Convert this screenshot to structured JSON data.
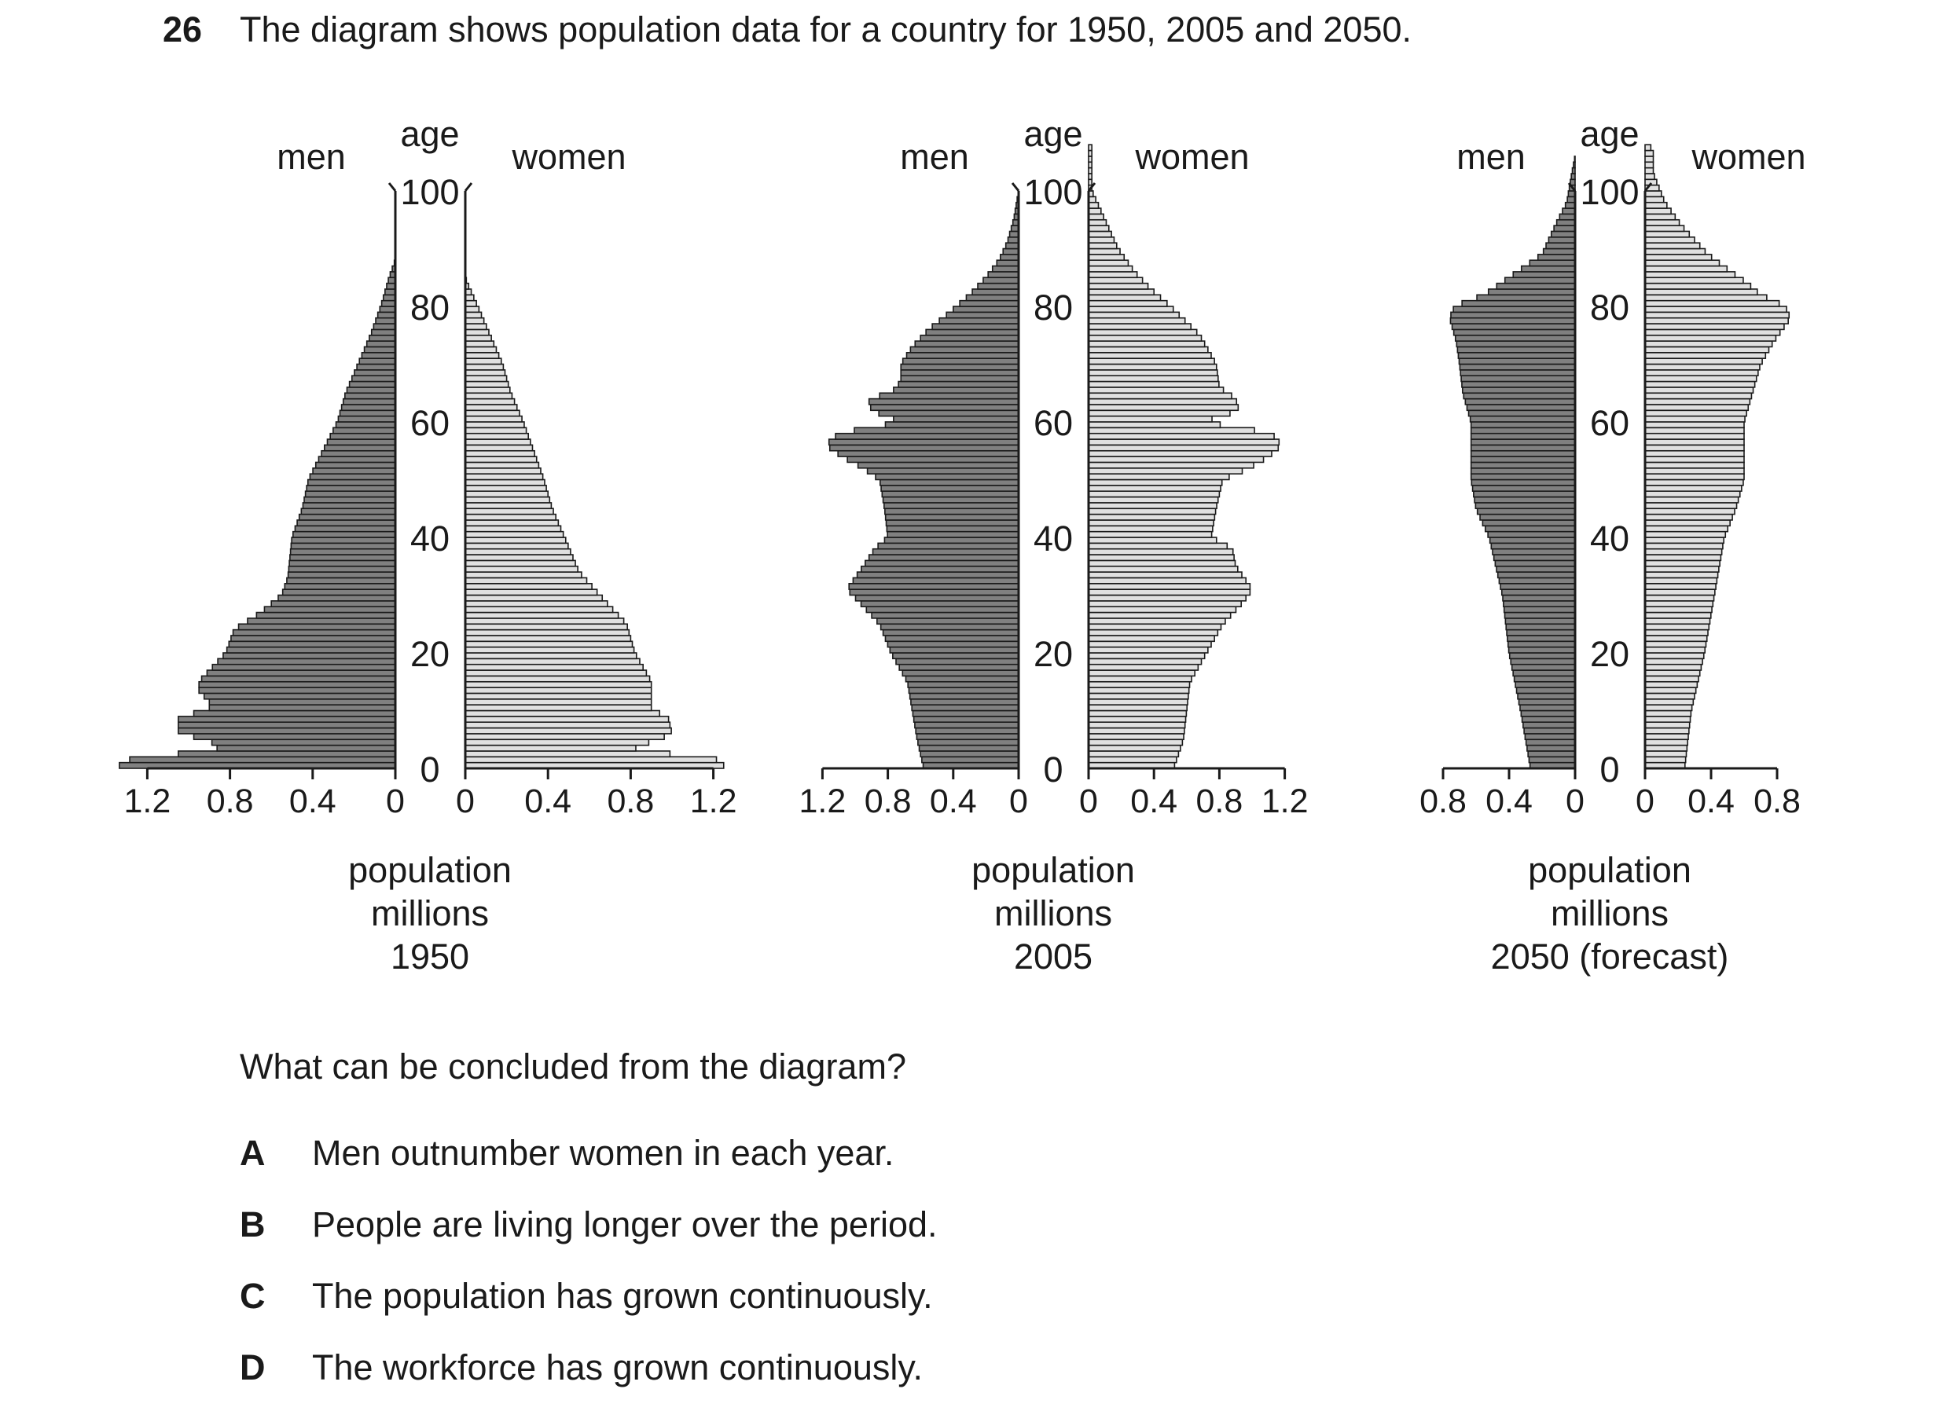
{
  "question_number": "26",
  "question_text": "The diagram shows population data for a country for 1950, 2005 and 2050.",
  "prompt": "What can be concluded from the diagram?",
  "options": [
    {
      "letter": "A",
      "text": "Men outnumber women in each year."
    },
    {
      "letter": "B",
      "text": "People are living longer over the period."
    },
    {
      "letter": "C",
      "text": "The population has grown continuously."
    },
    {
      "letter": "D",
      "text": "The workforce has grown continuously."
    }
  ],
  "chart_data": [
    {
      "type": "bar",
      "subtype": "population-pyramid",
      "left_label": "men",
      "right_label": "women",
      "axis_label": "age",
      "age_ticks": [
        0,
        20,
        40,
        60,
        80,
        100
      ],
      "xlabel": [
        "population",
        "millions",
        "1950"
      ],
      "x_ticks": [
        0,
        0.4,
        0.8,
        1.2
      ],
      "xlim": [
        0,
        1.25
      ],
      "age_range": [
        0,
        100
      ],
      "colors": {
        "men": "#808080",
        "women": "#e0e0e0"
      },
      "men_anchors": [
        [
          0,
          1.35
        ],
        [
          1,
          1.32
        ],
        [
          2,
          1.25
        ],
        [
          3,
          0.85
        ],
        [
          5,
          0.9
        ],
        [
          6,
          1.05
        ],
        [
          9,
          1.05
        ],
        [
          10,
          0.9
        ],
        [
          12,
          0.9
        ],
        [
          13,
          0.95
        ],
        [
          15,
          0.95
        ],
        [
          20,
          0.82
        ],
        [
          24,
          0.78
        ],
        [
          27,
          0.65
        ],
        [
          30,
          0.55
        ],
        [
          33,
          0.52
        ],
        [
          40,
          0.5
        ],
        [
          45,
          0.45
        ],
        [
          50,
          0.42
        ],
        [
          55,
          0.35
        ],
        [
          60,
          0.28
        ],
        [
          65,
          0.24
        ],
        [
          70,
          0.18
        ],
        [
          75,
          0.12
        ],
        [
          80,
          0.07
        ],
        [
          85,
          0.03
        ],
        [
          88,
          0.0
        ]
      ],
      "women_anchors": [
        [
          0,
          1.25
        ],
        [
          1,
          1.25
        ],
        [
          2,
          1.18
        ],
        [
          3,
          0.8
        ],
        [
          4,
          0.85
        ],
        [
          6,
          1.0
        ],
        [
          9,
          0.98
        ],
        [
          10,
          0.9
        ],
        [
          15,
          0.9
        ],
        [
          20,
          0.82
        ],
        [
          25,
          0.78
        ],
        [
          28,
          0.7
        ],
        [
          30,
          0.65
        ],
        [
          34,
          0.55
        ],
        [
          40,
          0.48
        ],
        [
          45,
          0.42
        ],
        [
          50,
          0.38
        ],
        [
          55,
          0.33
        ],
        [
          60,
          0.28
        ],
        [
          65,
          0.22
        ],
        [
          70,
          0.18
        ],
        [
          75,
          0.12
        ],
        [
          80,
          0.06
        ],
        [
          84,
          0.01
        ],
        [
          85,
          0.0
        ]
      ]
    },
    {
      "type": "bar",
      "subtype": "population-pyramid",
      "left_label": "men",
      "right_label": "women",
      "axis_label": "age",
      "age_ticks": [
        0,
        20,
        40,
        60,
        80,
        100
      ],
      "xlabel": [
        "population",
        "millions",
        "2005"
      ],
      "x_ticks": [
        0,
        0.4,
        0.8,
        1.2
      ],
      "xlim": [
        0,
        1.2
      ],
      "age_range": [
        0,
        100
      ],
      "colors": {
        "men": "#808080",
        "women": "#e0e0e0"
      },
      "men_anchors": [
        [
          0,
          0.58
        ],
        [
          5,
          0.62
        ],
        [
          15,
          0.68
        ],
        [
          20,
          0.78
        ],
        [
          25,
          0.85
        ],
        [
          29,
          0.98
        ],
        [
          31,
          1.05
        ],
        [
          33,
          1.0
        ],
        [
          35,
          0.95
        ],
        [
          38,
          0.88
        ],
        [
          40,
          0.8
        ],
        [
          45,
          0.82
        ],
        [
          50,
          0.85
        ],
        [
          52,
          0.95
        ],
        [
          54,
          1.08
        ],
        [
          56,
          1.18
        ],
        [
          58,
          1.1
        ],
        [
          60,
          0.72
        ],
        [
          62,
          0.9
        ],
        [
          64,
          0.92
        ],
        [
          65,
          0.78
        ],
        [
          67,
          0.72
        ],
        [
          70,
          0.72
        ],
        [
          73,
          0.65
        ],
        [
          76,
          0.55
        ],
        [
          79,
          0.42
        ],
        [
          82,
          0.3
        ],
        [
          85,
          0.2
        ],
        [
          88,
          0.12
        ],
        [
          91,
          0.07
        ],
        [
          95,
          0.03
        ],
        [
          100,
          0.0
        ]
      ],
      "women_anchors": [
        [
          0,
          0.52
        ],
        [
          5,
          0.58
        ],
        [
          15,
          0.62
        ],
        [
          20,
          0.72
        ],
        [
          25,
          0.82
        ],
        [
          29,
          0.95
        ],
        [
          31,
          1.0
        ],
        [
          35,
          0.9
        ],
        [
          38,
          0.88
        ],
        [
          40,
          0.75
        ],
        [
          45,
          0.78
        ],
        [
          50,
          0.82
        ],
        [
          52,
          0.98
        ],
        [
          54,
          1.1
        ],
        [
          56,
          1.18
        ],
        [
          58,
          1.12
        ],
        [
          60,
          0.7
        ],
        [
          62,
          0.92
        ],
        [
          64,
          0.9
        ],
        [
          66,
          0.8
        ],
        [
          70,
          0.78
        ],
        [
          75,
          0.68
        ],
        [
          80,
          0.5
        ],
        [
          83,
          0.38
        ],
        [
          86,
          0.28
        ],
        [
          90,
          0.18
        ],
        [
          95,
          0.1
        ],
        [
          100,
          0.02
        ]
      ]
    },
    {
      "type": "bar",
      "subtype": "population-pyramid",
      "left_label": "men",
      "right_label": "women",
      "axis_label": "age",
      "age_ticks": [
        0,
        20,
        40,
        60,
        80,
        100
      ],
      "xlabel": [
        "population",
        "millions",
        "2050 (forecast)"
      ],
      "x_ticks": [
        0,
        0.4,
        0.8
      ],
      "xlim": [
        0,
        0.8
      ],
      "age_range": [
        0,
        100
      ],
      "colors": {
        "men": "#808080",
        "women": "#e0e0e0"
      },
      "men_anchors": [
        [
          0,
          0.27
        ],
        [
          10,
          0.33
        ],
        [
          20,
          0.4
        ],
        [
          30,
          0.44
        ],
        [
          40,
          0.52
        ],
        [
          45,
          0.6
        ],
        [
          50,
          0.63
        ],
        [
          60,
          0.63
        ],
        [
          65,
          0.68
        ],
        [
          70,
          0.7
        ],
        [
          74,
          0.72
        ],
        [
          78,
          0.76
        ],
        [
          80,
          0.73
        ],
        [
          82,
          0.55
        ],
        [
          84,
          0.45
        ],
        [
          86,
          0.35
        ],
        [
          89,
          0.2
        ],
        [
          94,
          0.12
        ],
        [
          98,
          0.05
        ],
        [
          103,
          0.02
        ],
        [
          106,
          0.0
        ]
      ],
      "women_anchors": [
        [
          0,
          0.24
        ],
        [
          10,
          0.28
        ],
        [
          20,
          0.36
        ],
        [
          30,
          0.42
        ],
        [
          40,
          0.48
        ],
        [
          45,
          0.55
        ],
        [
          50,
          0.6
        ],
        [
          60,
          0.6
        ],
        [
          65,
          0.65
        ],
        [
          70,
          0.7
        ],
        [
          74,
          0.78
        ],
        [
          78,
          0.88
        ],
        [
          80,
          0.85
        ],
        [
          82,
          0.7
        ],
        [
          84,
          0.62
        ],
        [
          86,
          0.52
        ],
        [
          89,
          0.38
        ],
        [
          94,
          0.22
        ],
        [
          98,
          0.12
        ],
        [
          103,
          0.05
        ],
        [
          107,
          0.05
        ],
        [
          108,
          0.02
        ]
      ]
    }
  ]
}
